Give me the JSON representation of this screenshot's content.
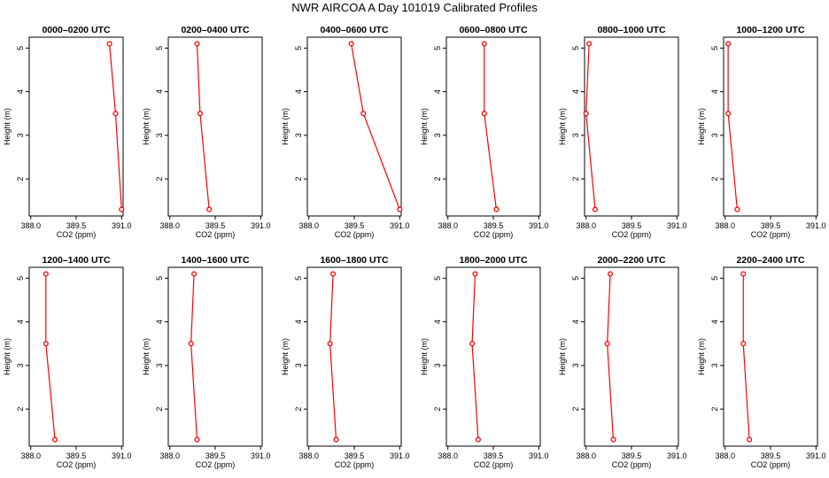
{
  "title": "NWR AIRCOA A  Day 101019  Calibrated Profiles",
  "chart_data": {
    "type": "line",
    "xlabel": "CO2 (ppm)",
    "ylabel": "Height (m)",
    "xlim": [
      387.95,
      391.05
    ],
    "ylim": [
      1.15,
      5.25
    ],
    "xticks": [
      388.0,
      389.5,
      391.0
    ],
    "xtick_labels": [
      "388.0",
      "389.5",
      "391.0"
    ],
    "yticks": [
      2,
      3,
      4,
      5
    ],
    "ytick_labels": [
      "2",
      "3",
      "4",
      "5"
    ],
    "color": "#ff0000",
    "grid": false,
    "panels": [
      {
        "title": "0000–0200 UTC",
        "heights": [
          5.1,
          3.5,
          1.3
        ],
        "co2": [
          390.6,
          390.8,
          391.0
        ]
      },
      {
        "title": "0200–0400 UTC",
        "heights": [
          5.1,
          3.5,
          1.3
        ],
        "co2": [
          388.9,
          389.0,
          389.3
        ]
      },
      {
        "title": "0400–0600 UTC",
        "heights": [
          5.1,
          3.5,
          1.3
        ],
        "co2": [
          389.4,
          389.8,
          391.0
        ]
      },
      {
        "title": "0600–0800 UTC",
        "heights": [
          5.1,
          3.5,
          1.3
        ],
        "co2": [
          389.2,
          389.2,
          389.6
        ]
      },
      {
        "title": "0800–1000 UTC",
        "heights": [
          5.1,
          3.5,
          1.3
        ],
        "co2": [
          388.1,
          388.0,
          388.3
        ]
      },
      {
        "title": "1000–1200 UTC",
        "heights": [
          5.1,
          3.5,
          1.3
        ],
        "co2": [
          388.1,
          388.1,
          388.4
        ]
      },
      {
        "title": "1200–1400 UTC",
        "heights": [
          5.1,
          3.5,
          1.3
        ],
        "co2": [
          388.5,
          388.5,
          388.8
        ]
      },
      {
        "title": "1400–1600 UTC",
        "heights": [
          5.1,
          3.5,
          1.3
        ],
        "co2": [
          388.8,
          388.7,
          388.9
        ]
      },
      {
        "title": "1600–1800 UTC",
        "heights": [
          5.1,
          3.5,
          1.3
        ],
        "co2": [
          388.8,
          388.7,
          388.9
        ]
      },
      {
        "title": "1800–2000 UTC",
        "heights": [
          5.1,
          3.5,
          1.3
        ],
        "co2": [
          388.9,
          388.8,
          389.0
        ]
      },
      {
        "title": "2000–2200 UTC",
        "heights": [
          5.1,
          3.5,
          1.3
        ],
        "co2": [
          388.8,
          388.7,
          388.9
        ]
      },
      {
        "title": "2200–2400 UTC",
        "heights": [
          5.1,
          3.5,
          1.3
        ],
        "co2": [
          388.6,
          388.6,
          388.8
        ]
      }
    ]
  }
}
